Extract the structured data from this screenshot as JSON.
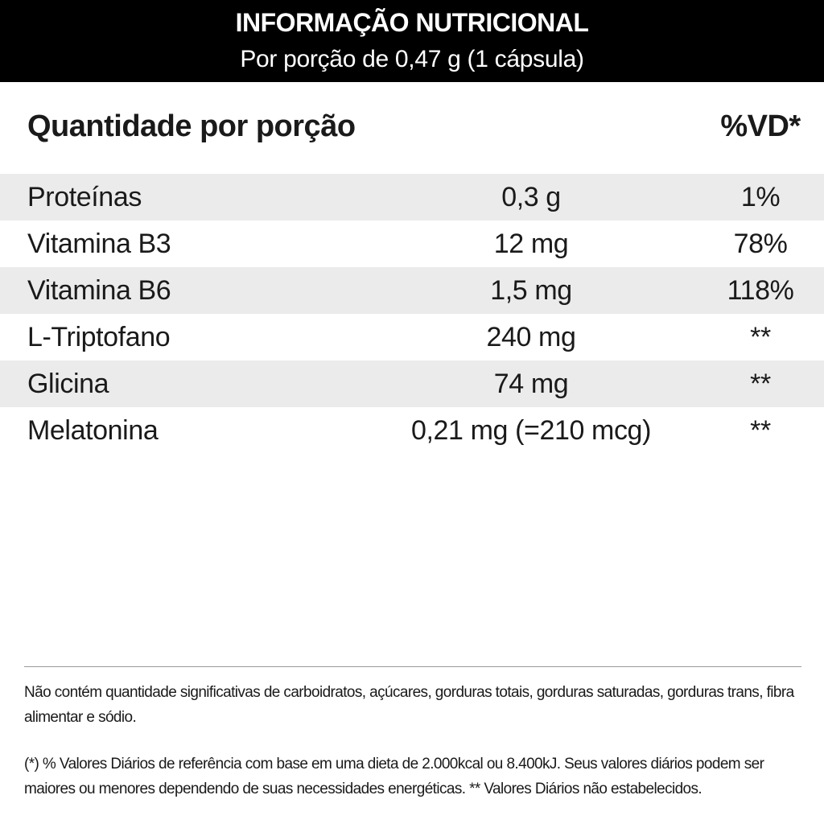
{
  "header": {
    "title": "INFORMAÇÃO NUTRICIONAL",
    "subtitle": "Por porção de 0,47 g (1 cápsula)"
  },
  "columns": {
    "left": "Quantidade por porção",
    "right": "%VD*"
  },
  "rows": [
    {
      "name": "Proteínas",
      "amount": "0,3 g",
      "vd": "1%"
    },
    {
      "name": "Vitamina B3",
      "amount": "12 mg",
      "vd": "78%"
    },
    {
      "name": "Vitamina B6",
      "amount": "1,5 mg",
      "vd": "118%"
    },
    {
      "name": "L-Triptofano",
      "amount": "240 mg",
      "vd": "**"
    },
    {
      "name": "Glicina",
      "amount": "74 mg",
      "vd": "**"
    },
    {
      "name": "Melatonina",
      "amount": "0,21 mg (=210 mcg)",
      "vd": "**"
    }
  ],
  "footnotes": {
    "not_significant": "Não contém quantidade significativas de carboidratos, açúcares, gorduras totais, gorduras saturadas, gorduras trans, fibra alimentar e sódio.",
    "daily_values": "(*) % Valores Diários de referência com base em uma dieta de 2.000kcal ou 8.400kJ. Seus valores diários podem ser maiores ou menores dependendo de suas necessidades energéticas. ** Valores Diários não estabelecidos."
  },
  "colors": {
    "header_bg": "#000000",
    "header_text": "#ffffff",
    "row_shade": "#ebebeb",
    "text": "#1a1a1a"
  }
}
